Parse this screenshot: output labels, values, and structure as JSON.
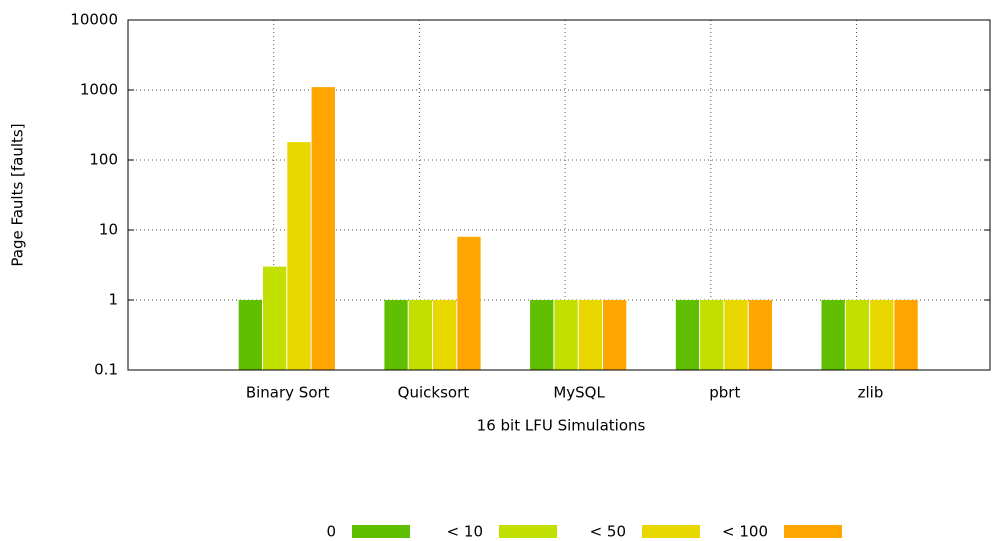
{
  "chart_data": {
    "type": "bar",
    "xlabel": "16 bit LFU Simulations",
    "ylabel": "Page Faults [faults]",
    "categories": [
      "Binary Sort",
      "Quicksort",
      "MySQL",
      "pbrt",
      "zlib"
    ],
    "series": [
      {
        "name": "0",
        "color": "#5fbf00",
        "values": [
          1,
          1,
          1,
          1,
          1
        ]
      },
      {
        "name": "< 10",
        "color": "#c2e000",
        "values": [
          3,
          1,
          1,
          1,
          1
        ]
      },
      {
        "name": "< 50",
        "color": "#e8d800",
        "values": [
          180,
          1,
          1,
          1,
          1
        ]
      },
      {
        "name": "< 100",
        "color": "#ffa500",
        "values": [
          1100,
          8,
          1,
          1,
          1
        ]
      }
    ],
    "ylim": [
      0.1,
      10000
    ],
    "yticks": [
      0.1,
      1,
      10,
      100,
      1000,
      10000
    ],
    "log_y": true,
    "grid": true,
    "legend": "bottom"
  }
}
